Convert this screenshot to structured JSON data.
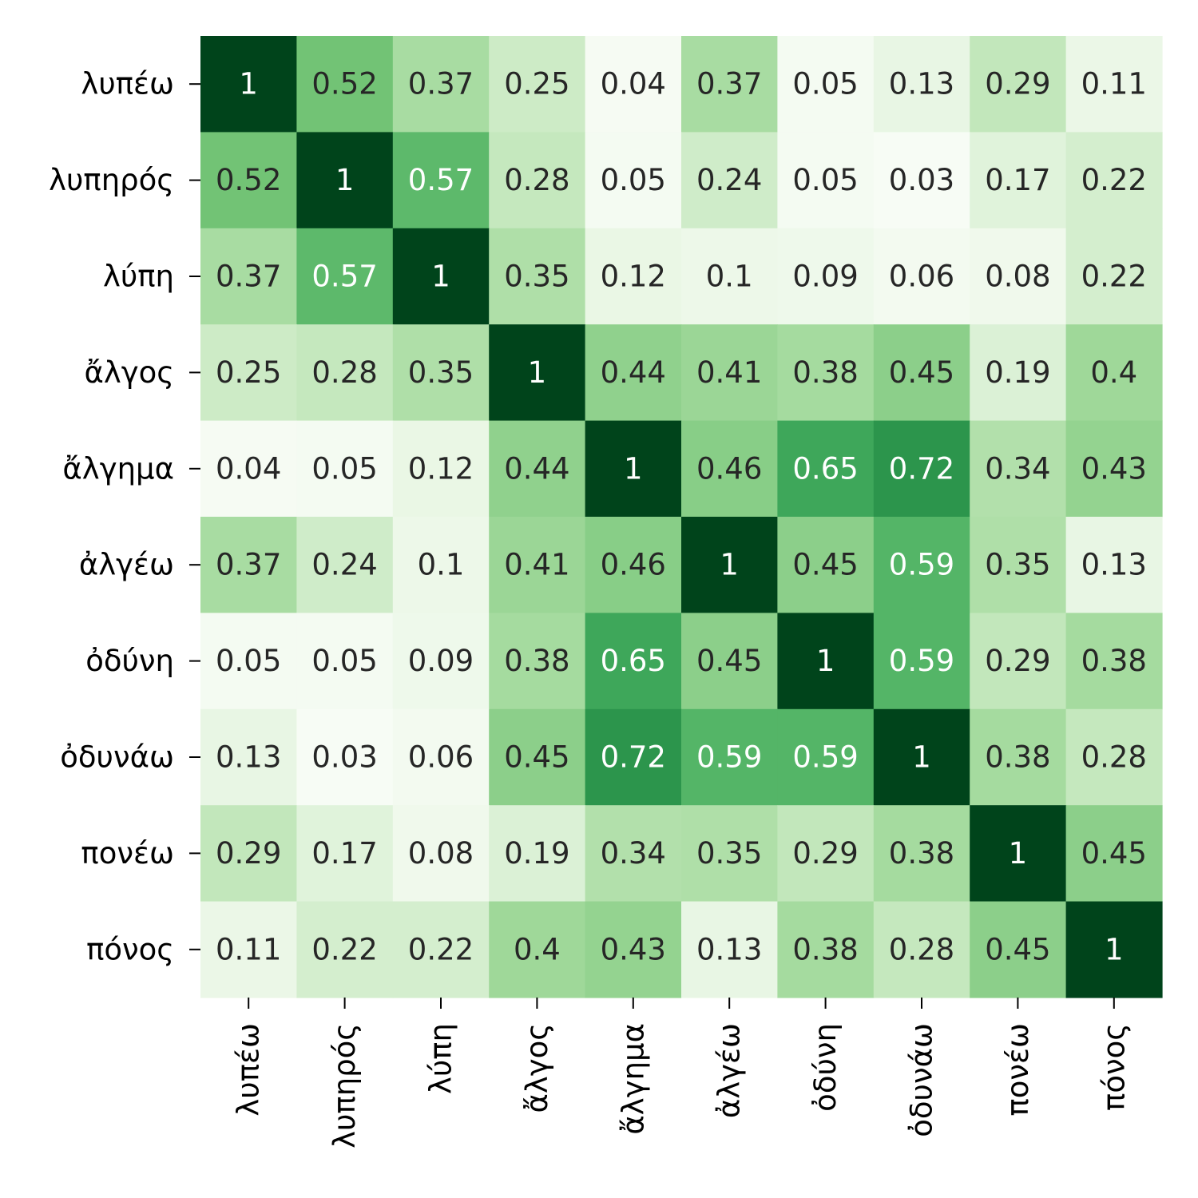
{
  "chart_data": {
    "type": "heatmap",
    "colormap": "Greens",
    "vmin": 0.03,
    "vmax": 1,
    "annotated": true,
    "grid": false,
    "labels": [
      "λυπέω",
      "λυπηρός",
      "λύπη",
      "ἄλγος",
      "ἄλγημα",
      "ἀλγέω",
      "ὀδύνη",
      "ὀδυνάω",
      "πονέω",
      "πόνος"
    ],
    "values": [
      [
        1,
        0.52,
        0.37,
        0.25,
        0.04,
        0.37,
        0.05,
        0.13,
        0.29,
        0.11
      ],
      [
        0.52,
        1,
        0.57,
        0.28,
        0.05,
        0.24,
        0.05,
        0.03,
        0.17,
        0.22
      ],
      [
        0.37,
        0.57,
        1,
        0.35,
        0.12,
        0.1,
        0.09,
        0.06,
        0.08,
        0.22
      ],
      [
        0.25,
        0.28,
        0.35,
        1,
        0.44,
        0.41,
        0.38,
        0.45,
        0.19,
        0.4
      ],
      [
        0.04,
        0.05,
        0.12,
        0.44,
        1,
        0.46,
        0.65,
        0.72,
        0.34,
        0.43
      ],
      [
        0.37,
        0.24,
        0.1,
        0.41,
        0.46,
        1,
        0.45,
        0.59,
        0.35,
        0.13
      ],
      [
        0.05,
        0.05,
        0.09,
        0.38,
        0.65,
        0.45,
        1,
        0.59,
        0.29,
        0.38
      ],
      [
        0.13,
        0.03,
        0.06,
        0.45,
        0.72,
        0.59,
        0.59,
        1,
        0.38,
        0.28
      ],
      [
        0.29,
        0.17,
        0.08,
        0.19,
        0.34,
        0.35,
        0.29,
        0.38,
        1,
        0.45
      ],
      [
        0.11,
        0.22,
        0.22,
        0.4,
        0.43,
        0.13,
        0.38,
        0.28,
        0.45,
        1
      ]
    ],
    "text_color_dark": "#262626",
    "text_color_light": "#ffffff"
  }
}
